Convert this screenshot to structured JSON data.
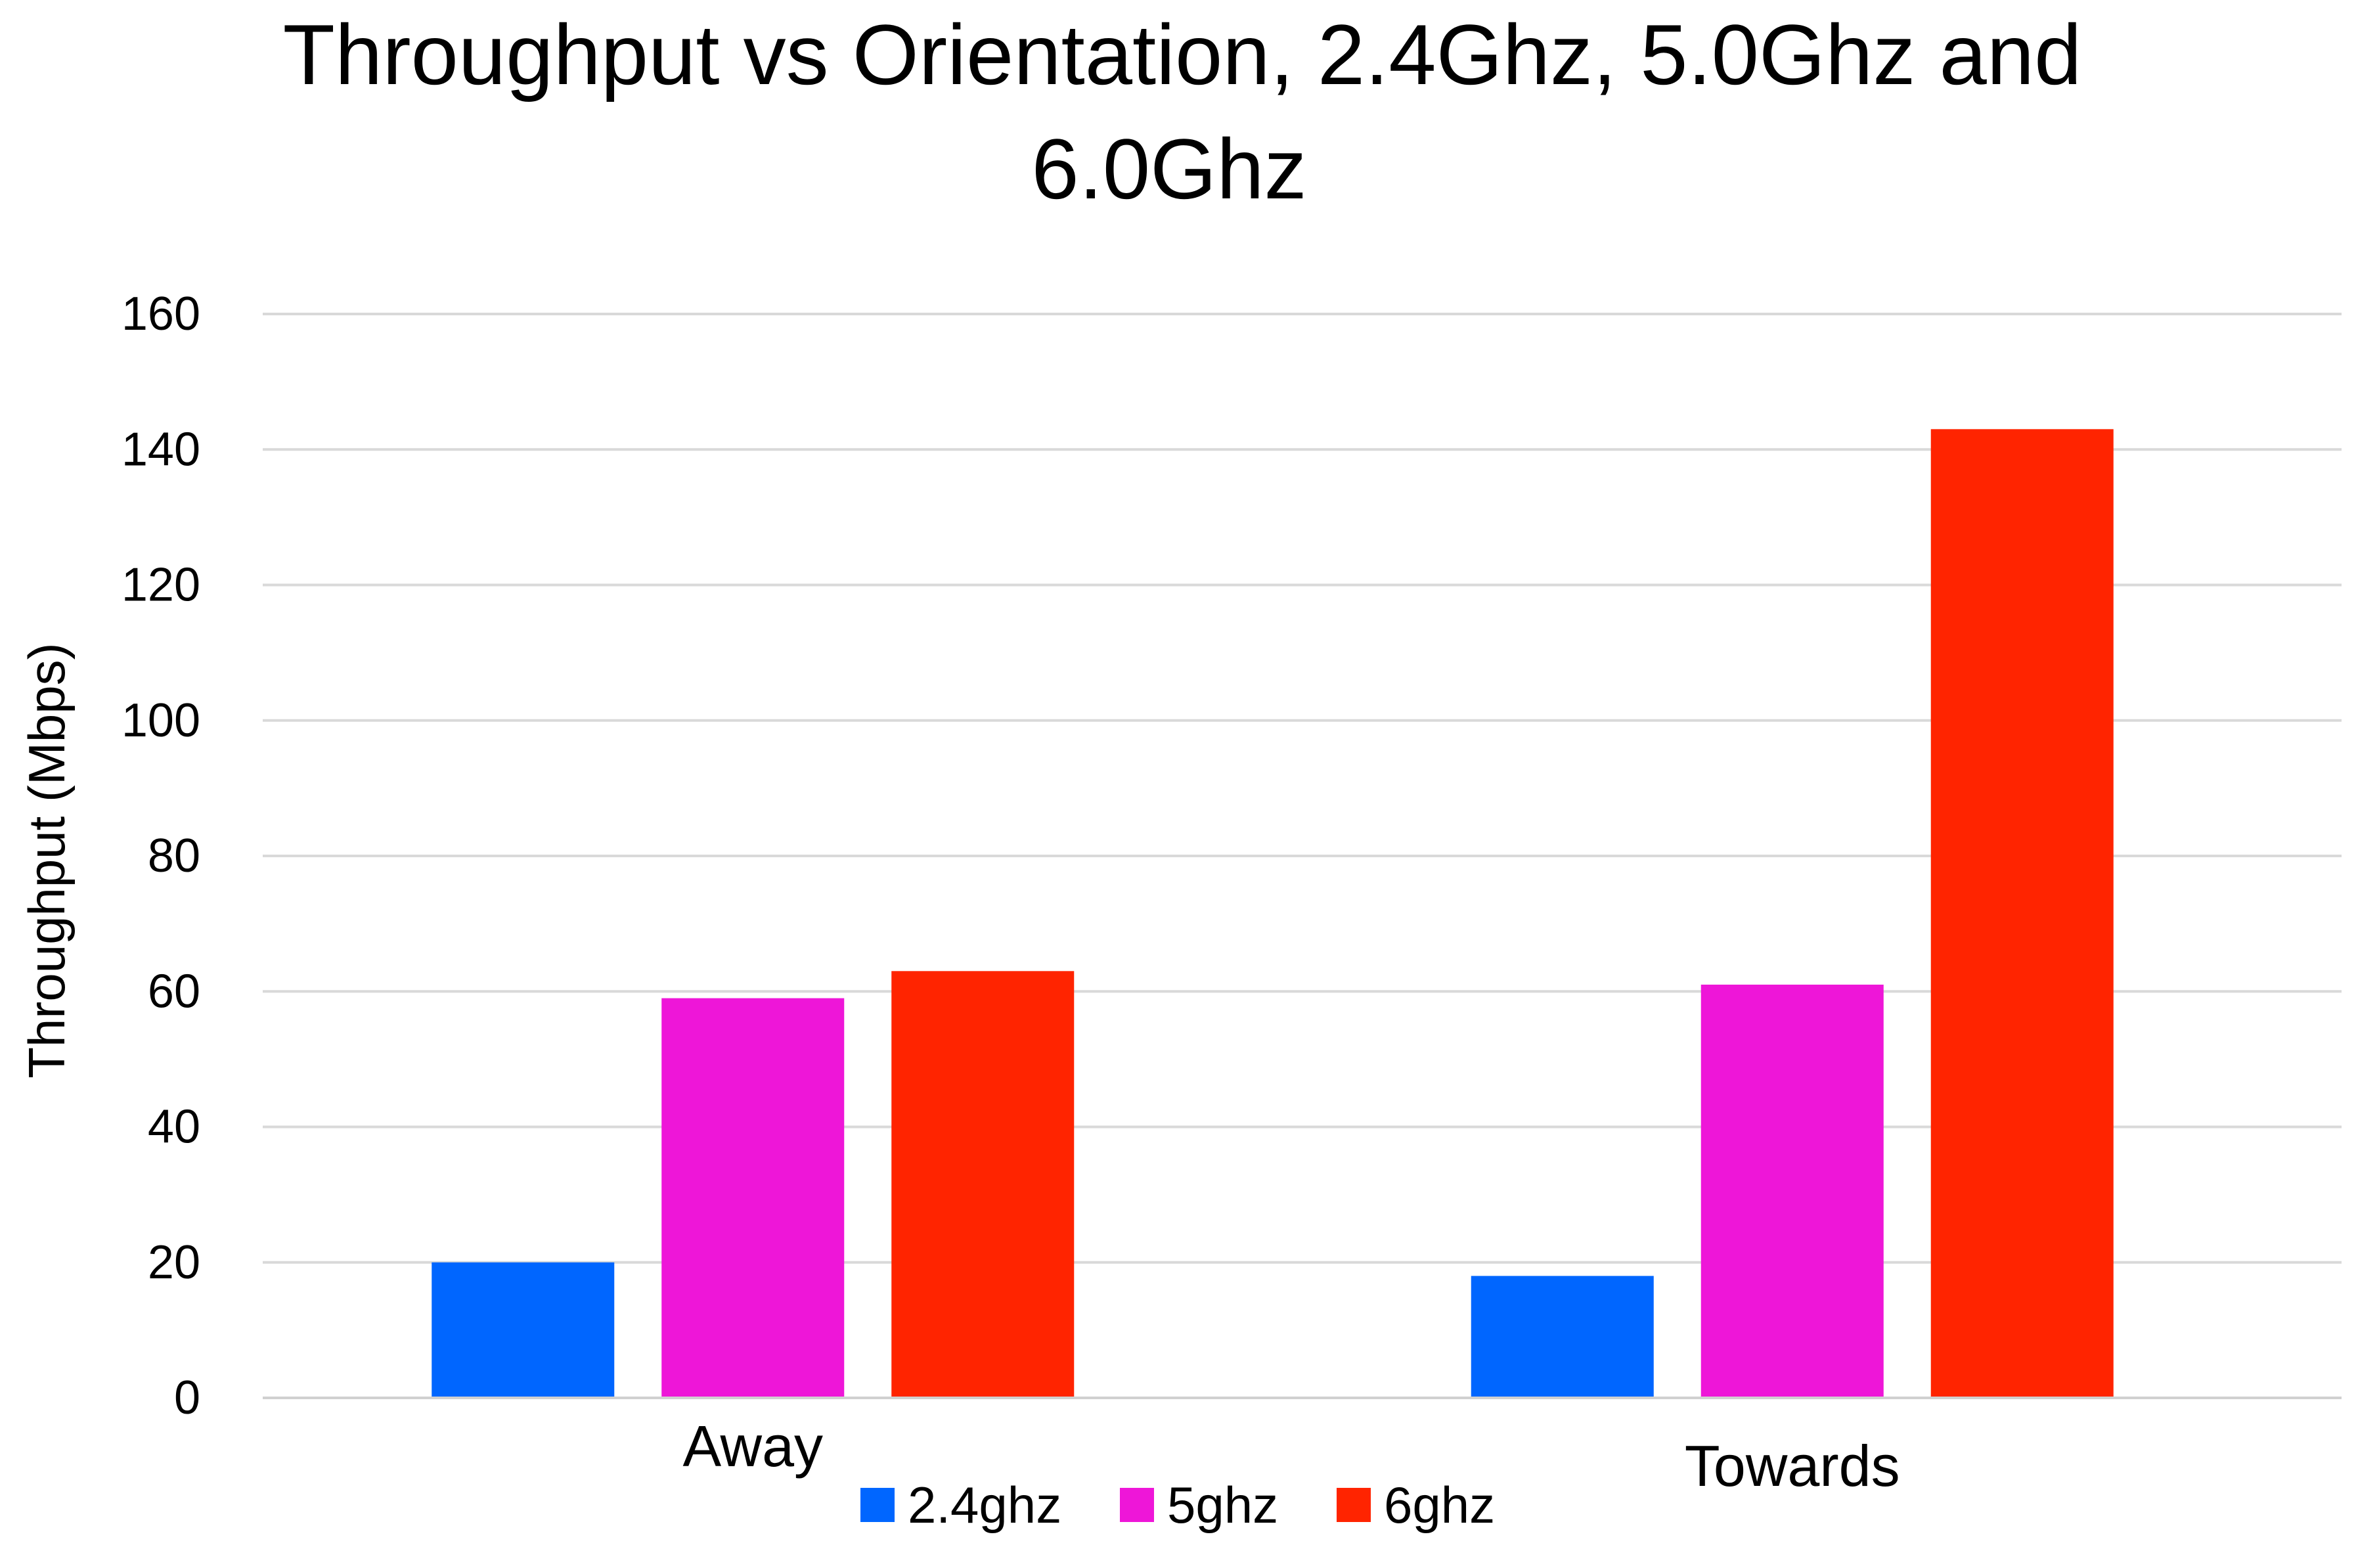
{
  "chart_data": {
    "type": "bar",
    "title_lines": [
      "Throughput vs Orientation, 2.4Ghz, 5.0Ghz and",
      "6.0Ghz"
    ],
    "xlabel": "",
    "ylabel": "Throughput (Mbps)",
    "categories": [
      "Away",
      "Towards"
    ],
    "series": [
      {
        "name": "2.4ghz",
        "color": "#0066ff",
        "values": [
          20,
          18
        ]
      },
      {
        "name": "5ghz",
        "color": "#ee16d8",
        "values": [
          59,
          61
        ]
      },
      {
        "name": "6ghz",
        "color": "#ff2400",
        "values": [
          63,
          143
        ]
      }
    ],
    "ylim": [
      0,
      160
    ],
    "yticks": [
      "0",
      "20",
      "40",
      "60",
      "80",
      "100",
      "120",
      "140",
      "160"
    ],
    "grid": true,
    "legend_position": "bottom"
  }
}
